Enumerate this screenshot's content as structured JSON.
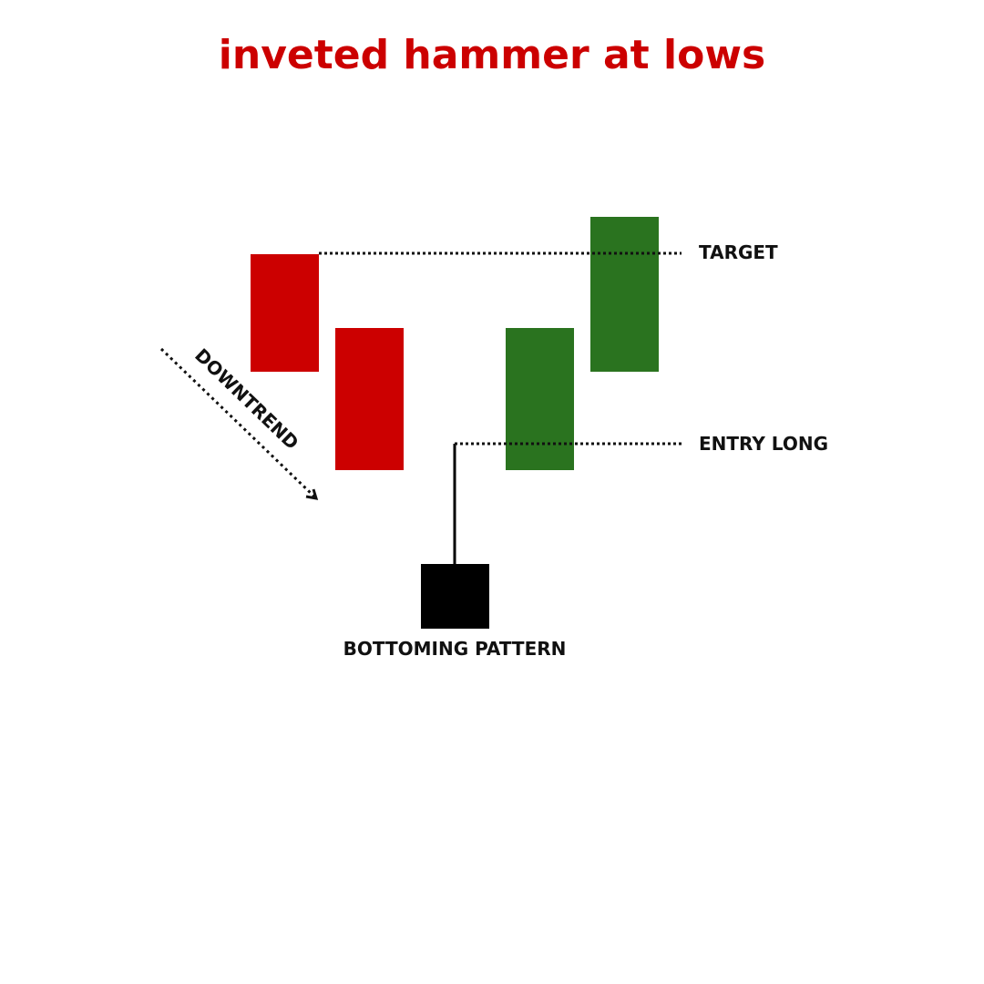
{
  "title": "inveted hammer at lows",
  "colors": {
    "title": "#cc0000",
    "bearish": "#cc0000",
    "bullish": "#2a731f",
    "pattern": "#000000",
    "lines": "#111111",
    "background": "#ffffff"
  },
  "labels": {
    "downtrend": "DOWNTREND",
    "target": "TARGET",
    "entry_long": "ENTRY LONG",
    "bottoming_pattern": "BOTTOMING PATTERN"
  },
  "candles": [
    {
      "type": "bearish",
      "role": "downtrend-candle-1"
    },
    {
      "type": "bearish",
      "role": "downtrend-candle-2"
    },
    {
      "type": "pattern",
      "role": "inverted-hammer"
    },
    {
      "type": "bullish",
      "role": "confirmation-candle"
    },
    {
      "type": "bullish",
      "role": "target-candle"
    }
  ]
}
